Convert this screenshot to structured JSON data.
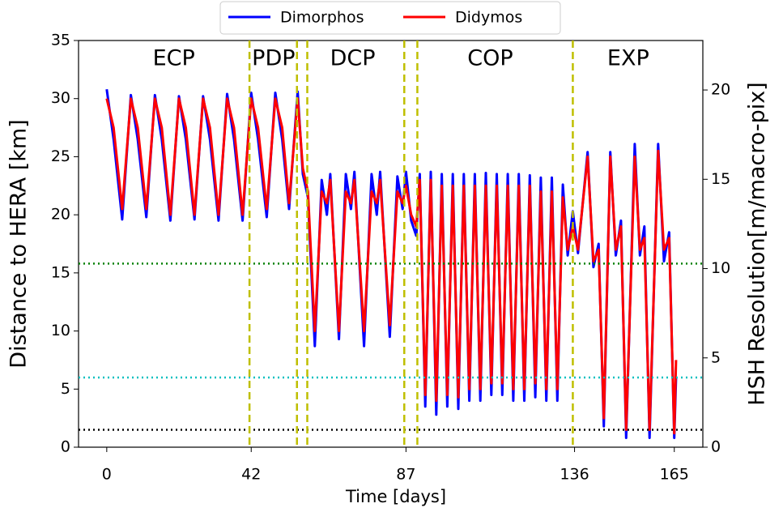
{
  "chart_data": {
    "type": "line",
    "xlabel": "Time [days]",
    "ylabel": "Distance to HERA [km]",
    "y2label": "HSH Resolution[m/macro-pix]",
    "xlim": [
      -8.2,
      173.3
    ],
    "ylim": [
      0,
      35
    ],
    "y2lim": [
      0,
      22.77
    ],
    "xticks": [
      0,
      42,
      87,
      136,
      165
    ],
    "yticks": [
      0,
      5,
      10,
      15,
      20,
      25,
      30,
      35
    ],
    "y2ticks": [
      0,
      5,
      10,
      15,
      20
    ],
    "legend": "top",
    "hlines": [
      {
        "y": 15.8,
        "color": "#008000"
      },
      {
        "y": 6.0,
        "color": "#00bfbf"
      },
      {
        "y": 1.5,
        "color": "#000000"
      }
    ],
    "vlines": {
      "x": [
        41.5,
        55.3,
        58.3,
        86.5,
        90.3,
        135.5
      ],
      "color": "#bfbf00"
    },
    "annotations": [
      {
        "text": "ECP",
        "x": 19.5,
        "y": 33.4
      },
      {
        "text": "PDP",
        "x": 48.5,
        "y": 33.4
      },
      {
        "text": "DCP",
        "x": 71.5,
        "y": 33.4
      },
      {
        "text": "COP",
        "x": 111.5,
        "y": 33.4
      },
      {
        "text": "EXP",
        "x": 151.6,
        "y": 33.4
      }
    ],
    "x": [
      0,
      2,
      4.5,
      7,
      9,
      11.5,
      14,
      16,
      18.5,
      21,
      23,
      25.5,
      28,
      30,
      32.5,
      35,
      37,
      39.5,
      42,
      44,
      46.5,
      49,
      51,
      53,
      55.5,
      57,
      58.5,
      60.5,
      62.5,
      64,
      65,
      67.5,
      69.5,
      71,
      72,
      74.8,
      77,
      78.5,
      79.5,
      82.3,
      84.5,
      86,
      87,
      88.5,
      90,
      91,
      92.6,
      94.2,
      95.8,
      97.4,
      99,
      100.6,
      102.2,
      103.8,
      105.4,
      107,
      108.6,
      110.2,
      111.8,
      113.4,
      115,
      116.6,
      118.2,
      119.8,
      121.4,
      123,
      124.6,
      126.2,
      127.8,
      129.4,
      131,
      132.6,
      134,
      135.5,
      137,
      139.8,
      141.5,
      143,
      144.5,
      146.4,
      148,
      149.5,
      151,
      153.5,
      155,
      156.3,
      157.8,
      160.3,
      162,
      163.5,
      165,
      165.5
    ],
    "series": [
      {
        "name": "Dimorphos",
        "color": "#0000ff",
        "values": [
          30.8,
          26.5,
          19.6,
          30.3,
          26.5,
          19.8,
          30.3,
          26.5,
          19.5,
          30.2,
          26.5,
          19.6,
          30.2,
          26.5,
          19.5,
          30.4,
          26.5,
          19.5,
          30.5,
          26.5,
          19.8,
          30.5,
          26.5,
          20.5,
          30.6,
          23.5,
          21.5,
          8.7,
          23,
          20,
          23.5,
          9.3,
          23.5,
          20.5,
          23.7,
          8.7,
          23.5,
          20,
          23.7,
          9.5,
          23.3,
          20.5,
          23.7,
          19.5,
          18.2,
          23.5,
          3.5,
          23.7,
          2.8,
          23.5,
          3.5,
          23.5,
          3.3,
          23.5,
          4,
          23.5,
          4,
          23.6,
          4.5,
          23.5,
          4.5,
          23.5,
          4,
          23.5,
          4,
          23.4,
          4.3,
          23.2,
          4,
          23.2,
          4,
          22.6,
          16.5,
          20.3,
          16.7,
          25.4,
          15.5,
          17.5,
          1.8,
          25.4,
          16.5,
          19.5,
          0.8,
          26.1,
          16.5,
          19,
          0.8,
          26.1,
          16,
          18.5,
          0.8,
          6
        ]
      },
      {
        "name": "Didymos",
        "color": "#ff0000",
        "values": [
          30,
          27.5,
          20.5,
          30,
          27.5,
          20.5,
          30,
          27.5,
          20,
          30,
          27.5,
          20,
          30,
          27.5,
          20,
          30,
          27.5,
          20,
          30,
          27.5,
          20.5,
          30,
          27.5,
          21,
          30,
          24,
          22,
          10,
          22,
          21,
          23,
          10,
          22,
          21,
          23,
          10,
          22,
          21,
          23,
          10.5,
          22,
          21,
          22.5,
          20,
          19,
          23,
          4.5,
          23,
          4,
          22.5,
          4.5,
          22.5,
          4.3,
          22.5,
          5,
          22.5,
          5,
          22.5,
          5.5,
          22.5,
          5.5,
          22.5,
          5,
          22.5,
          5,
          22.5,
          5.5,
          22,
          5,
          22,
          5,
          21.5,
          17,
          19,
          17,
          25,
          16,
          17,
          2.5,
          25,
          17,
          19,
          1.5,
          25,
          17,
          18,
          1.5,
          25.5,
          17,
          18,
          1.2,
          7.5
        ]
      }
    ]
  }
}
